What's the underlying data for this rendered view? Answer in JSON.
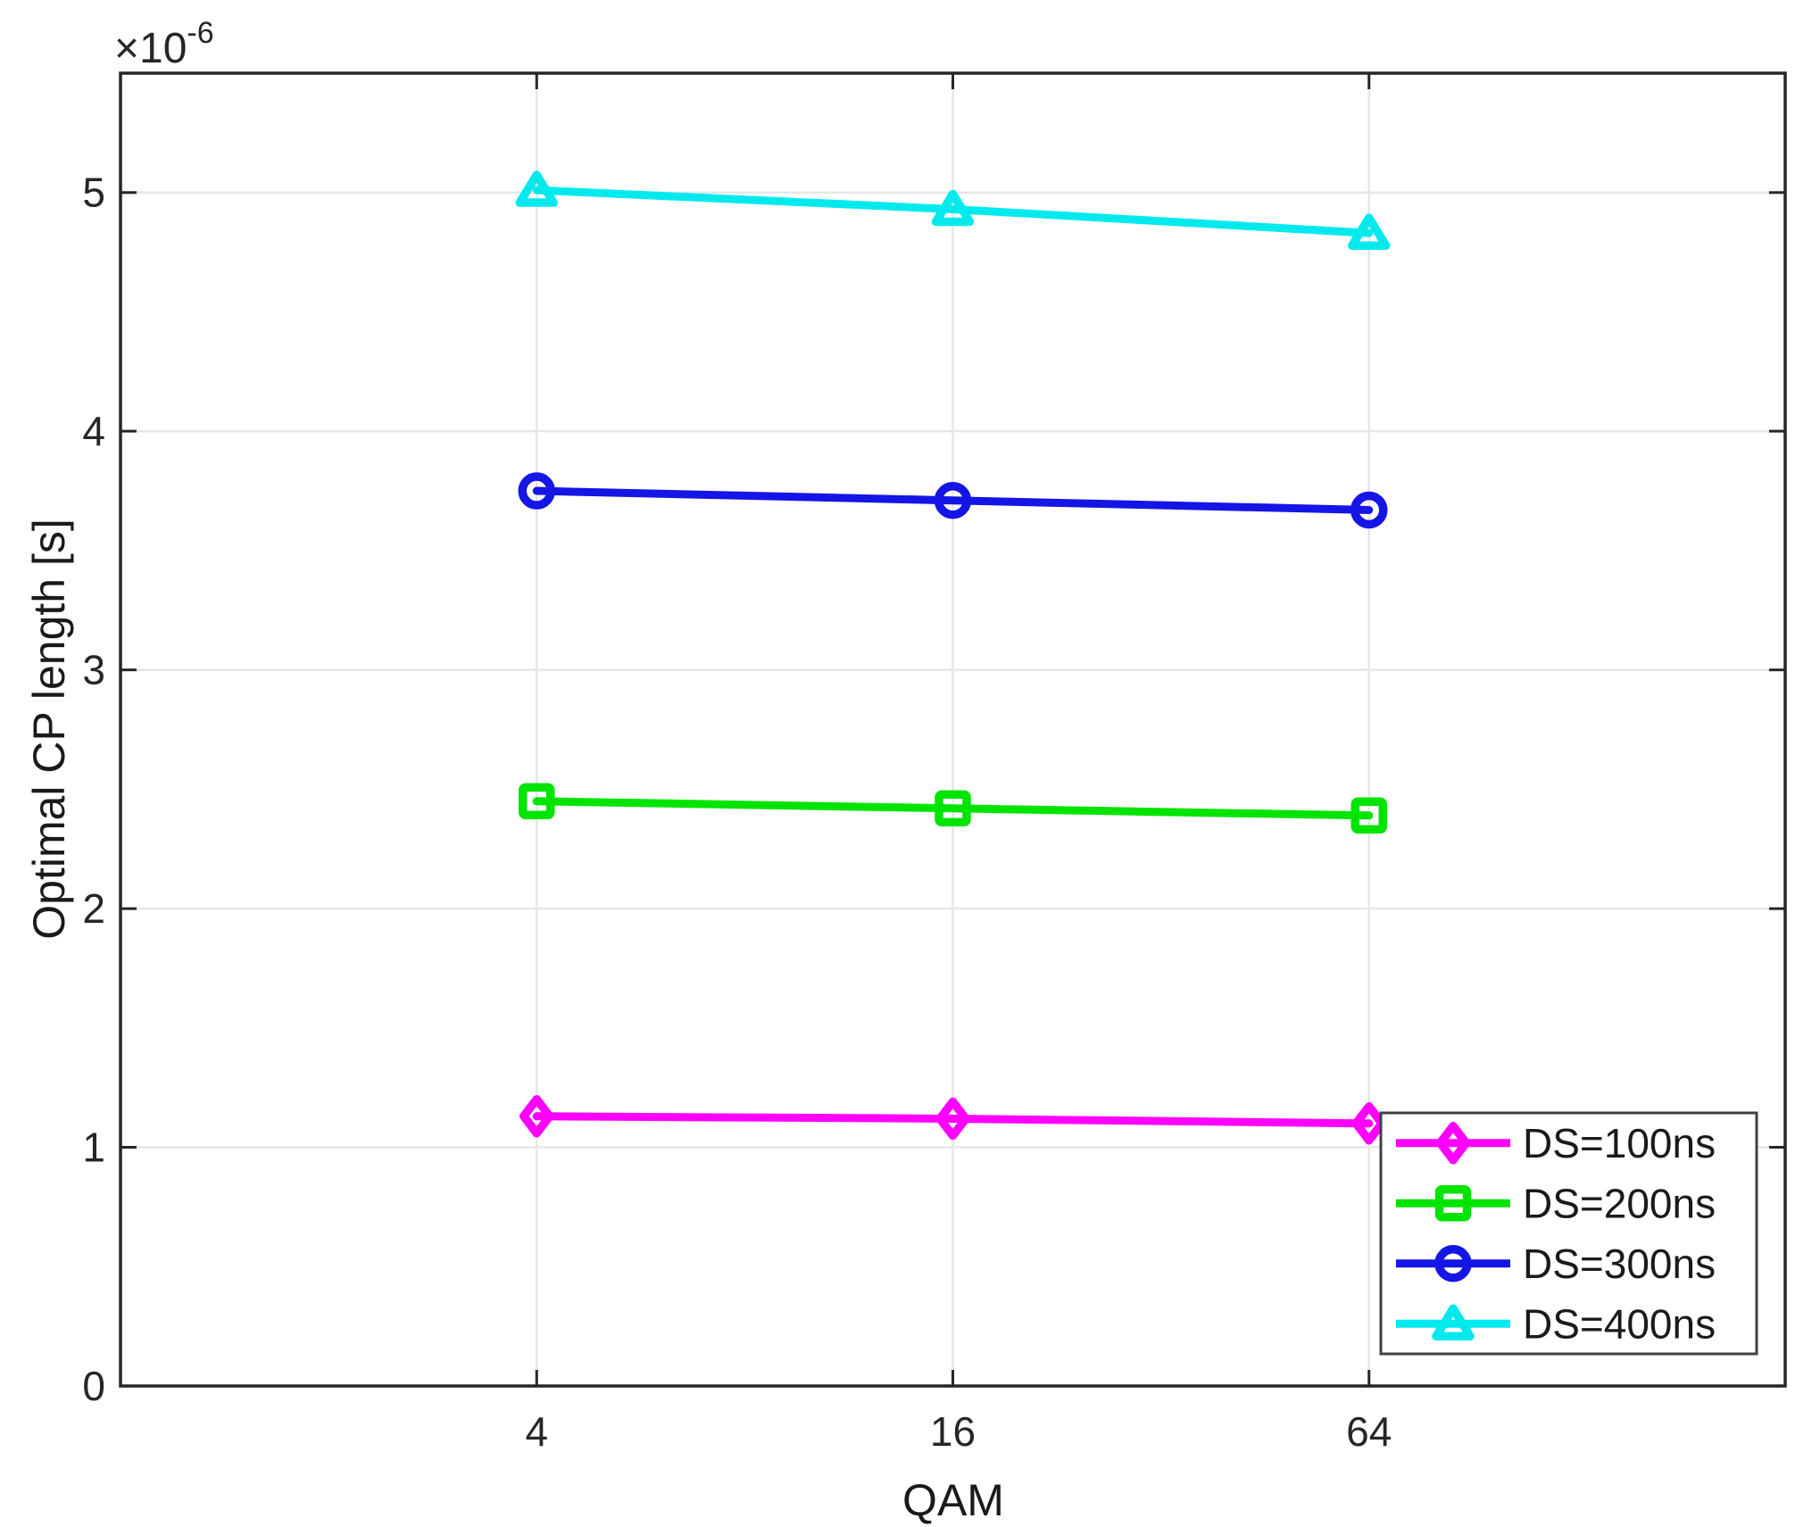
{
  "figure": {
    "background": "#ffffff"
  },
  "chart_data": {
    "type": "line",
    "title": "",
    "xlabel": "QAM",
    "ylabel": "Optimal CP length [s]",
    "y_offset_base": "×10",
    "y_offset_exp": "-6",
    "categories": [
      "4",
      "16",
      "64"
    ],
    "x_tick_labels": [
      "4",
      "16",
      "64"
    ],
    "y_ticks": [
      "0",
      "1",
      "2",
      "3",
      "4",
      "5"
    ],
    "ylim": [
      0,
      5.5
    ],
    "grid": true,
    "grid_color": "#e6e6e6",
    "axis_color": "#262626",
    "tick_label_color": "#262626",
    "legend_position": "bottom-right",
    "legend_border_color": "#404040",
    "legend_background": "#ffffff",
    "series": [
      {
        "name": "DS=100ns",
        "color": "#ff00ff",
        "marker": "diamond",
        "values": [
          1.13,
          1.12,
          1.1
        ]
      },
      {
        "name": "DS=200ns",
        "color": "#00e400",
        "marker": "square",
        "values": [
          2.45,
          2.42,
          2.39
        ]
      },
      {
        "name": "DS=300ns",
        "color": "#1515e5",
        "marker": "circle",
        "values": [
          3.75,
          3.71,
          3.67
        ]
      },
      {
        "name": "DS=400ns",
        "color": "#00eaee",
        "marker": "triangle",
        "values": [
          5.01,
          4.93,
          4.83
        ]
      }
    ]
  }
}
